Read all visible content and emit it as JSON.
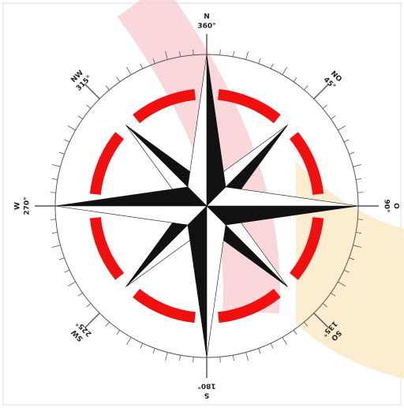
{
  "labels": [
    {
      "dir": "N",
      "deg": "360°"
    },
    {
      "dir": "NO",
      "deg": "45°"
    },
    {
      "dir": "O",
      "deg": "90°"
    },
    {
      "dir": "SO",
      "deg": "135°"
    },
    {
      "dir": "S",
      "deg": "180°"
    },
    {
      "dir": "SW",
      "deg": "225°"
    },
    {
      "dir": "W",
      "deg": "270°"
    },
    {
      "dir": "NW",
      "deg": "315°"
    }
  ]
}
